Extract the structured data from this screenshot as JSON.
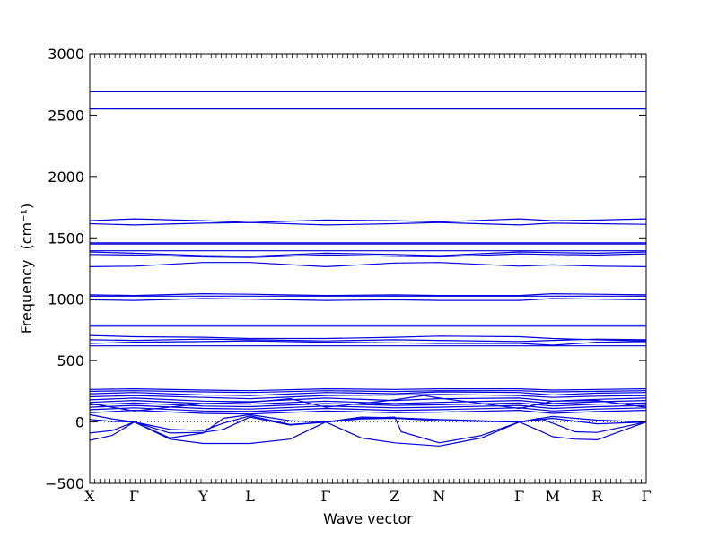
{
  "chart_data": {
    "type": "line",
    "xlabel": "Wave vector",
    "ylabel": "Frequency",
    "ylabel_unit": "(cm⁻¹)",
    "ylim": [
      -500,
      3000
    ],
    "yticks": [
      -500,
      0,
      500,
      1000,
      1500,
      2000,
      2500,
      3000
    ],
    "ytick_labels": [
      "−500",
      "0",
      "500",
      "1000",
      "1500",
      "2000",
      "2500",
      "3000"
    ],
    "xlim": [
      0,
      12.5
    ],
    "kpoints": [
      {
        "label": "X",
        "x": 0
      },
      {
        "label": "Γ",
        "x": 1
      },
      {
        "label": "Y",
        "x": 2.55
      },
      {
        "label": "L",
        "x": 3.6
      },
      {
        "label": "Γ",
        "x": 5.3
      },
      {
        "label": "Z",
        "x": 6.85
      },
      {
        "label": "N",
        "x": 7.85
      },
      {
        "label": "Γ",
        "x": 9.65
      },
      {
        "label": "M",
        "x": 10.4
      },
      {
        "label": "R",
        "x": 11.4
      },
      {
        "label": "Γ",
        "x": 12.5
      }
    ],
    "line_color": "#0000dd",
    "zero_line": true,
    "grid": false,
    "series": [
      {
        "x": [
          0,
          12.5
        ],
        "y": [
          2695,
          2695
        ]
      },
      {
        "x": [
          0,
          12.5
        ],
        "y": [
          2690,
          2690
        ]
      },
      {
        "x": [
          0,
          12.5
        ],
        "y": [
          2555,
          2555
        ]
      },
      {
        "x": [
          0,
          12.5
        ],
        "y": [
          2550,
          2550
        ]
      },
      {
        "x": [
          0,
          1,
          2.55,
          3.6,
          5.3,
          6.85,
          7.85,
          9.65,
          10.4,
          11.4,
          12.5
        ],
        "y": [
          1640,
          1655,
          1640,
          1625,
          1645,
          1640,
          1630,
          1655,
          1640,
          1645,
          1655
        ]
      },
      {
        "x": [
          0,
          1,
          2.55,
          3.6,
          5.3,
          6.85,
          7.85,
          9.65,
          10.4,
          11.4,
          12.5
        ],
        "y": [
          1615,
          1605,
          1620,
          1625,
          1605,
          1615,
          1625,
          1605,
          1620,
          1615,
          1610
        ]
      },
      {
        "x": [
          0,
          12.5
        ],
        "y": [
          1460,
          1460
        ]
      },
      {
        "x": [
          0,
          12.5
        ],
        "y": [
          1450,
          1450
        ]
      },
      {
        "x": [
          0,
          12.5
        ],
        "y": [
          1395,
          1395
        ]
      },
      {
        "x": [
          0,
          1,
          2.55,
          3.6,
          5.3,
          6.85,
          7.85,
          9.65,
          10.4,
          11.4,
          12.5
        ],
        "y": [
          1385,
          1375,
          1355,
          1350,
          1375,
          1365,
          1355,
          1385,
          1380,
          1375,
          1385
        ]
      },
      {
        "x": [
          0,
          1,
          2.55,
          3.6,
          5.3,
          6.85,
          7.85,
          9.65,
          10.4,
          11.4,
          12.5
        ],
        "y": [
          1365,
          1360,
          1345,
          1340,
          1360,
          1350,
          1345,
          1370,
          1365,
          1360,
          1370
        ]
      },
      {
        "x": [
          0,
          1,
          2.55,
          3.6,
          5.3,
          6.85,
          7.85,
          9.65,
          10.4,
          11.4,
          12.5
        ],
        "y": [
          1265,
          1270,
          1300,
          1300,
          1265,
          1295,
          1300,
          1270,
          1280,
          1270,
          1265
        ]
      },
      {
        "x": [
          0,
          1,
          2.55,
          3.6,
          5.3,
          6.85,
          7.85,
          9.65,
          10.4,
          11.4,
          12.5
        ],
        "y": [
          1035,
          1030,
          1045,
          1040,
          1030,
          1035,
          1030,
          1030,
          1045,
          1040,
          1035
        ]
      },
      {
        "x": [
          0,
          12.5
        ],
        "y": [
          1025,
          1025
        ]
      },
      {
        "x": [
          0,
          1,
          2.55,
          3.6,
          5.3,
          6.85,
          7.85,
          9.65,
          10.4,
          11.4,
          12.5
        ],
        "y": [
          995,
          990,
          1005,
          1000,
          990,
          995,
          990,
          990,
          1005,
          1000,
          995
        ]
      },
      {
        "x": [
          0,
          12.5
        ],
        "y": [
          790,
          790
        ]
      },
      {
        "x": [
          0,
          12.5
        ],
        "y": [
          780,
          780
        ]
      },
      {
        "x": [
          0,
          1,
          2.55,
          3.6,
          5.3,
          6.85,
          7.85,
          9.65,
          10.4,
          11.4,
          12.5
        ],
        "y": [
          705,
          695,
          690,
          680,
          680,
          690,
          700,
          695,
          680,
          670,
          660
        ]
      },
      {
        "x": [
          0,
          1,
          2.55,
          3.6,
          5.3,
          6.85,
          7.85,
          9.65,
          10.4,
          11.4,
          12.5
        ],
        "y": [
          670,
          665,
          675,
          670,
          660,
          670,
          665,
          655,
          665,
          675,
          670
        ]
      },
      {
        "x": [
          0,
          1,
          2.55,
          3.6,
          5.3,
          6.85,
          7.85,
          9.65,
          10.4,
          11.4,
          12.5
        ],
        "y": [
          640,
          650,
          655,
          660,
          650,
          645,
          640,
          640,
          625,
          650,
          655
        ]
      },
      {
        "x": [
          0,
          12.5
        ],
        "y": [
          620,
          620
        ]
      },
      {
        "x": [
          0,
          1,
          2.55,
          3.6,
          5.3,
          6.85,
          7.85,
          9.65,
          10.4,
          11.4,
          12.5
        ],
        "y": [
          265,
          270,
          260,
          255,
          270,
          265,
          270,
          270,
          260,
          265,
          270
        ]
      },
      {
        "x": [
          0,
          1,
          2.55,
          3.6,
          5.3,
          6.85,
          7.85,
          9.65,
          10.4,
          11.4,
          12.5
        ],
        "y": [
          250,
          255,
          245,
          240,
          255,
          248,
          255,
          255,
          245,
          250,
          255
        ]
      },
      {
        "x": [
          0,
          1,
          2.55,
          3.6,
          5.3,
          6.85,
          7.85,
          9.65,
          10.4,
          11.4,
          12.5
        ],
        "y": [
          230,
          240,
          220,
          215,
          240,
          230,
          245,
          240,
          220,
          235,
          240
        ]
      },
      {
        "x": [
          0,
          1,
          2.55,
          3.6,
          5.3,
          6.85,
          7.85,
          9.65,
          10.4,
          11.4,
          12.5
        ],
        "y": [
          205,
          215,
          200,
          190,
          215,
          220,
          225,
          215,
          200,
          210,
          215
        ]
      },
      {
        "x": [
          0,
          1,
          2.55,
          3.6,
          5.3,
          6.85,
          7.85,
          9.65,
          10.4,
          11.4,
          12.5
        ],
        "y": [
          180,
          195,
          170,
          165,
          195,
          175,
          190,
          195,
          170,
          185,
          195
        ]
      },
      {
        "x": [
          0,
          1,
          2.55,
          3.6,
          5.3,
          6.85,
          7.85,
          9.65,
          10.4,
          11.4,
          12.5
        ],
        "y": [
          160,
          175,
          150,
          145,
          170,
          150,
          160,
          175,
          150,
          165,
          175
        ]
      },
      {
        "x": [
          0,
          1,
          2.55,
          3.6,
          5.3,
          6.85,
          7.85,
          9.65,
          10.4,
          11.4,
          12.5
        ],
        "y": [
          140,
          155,
          130,
          125,
          150,
          135,
          140,
          155,
          130,
          145,
          155
        ]
      },
      {
        "x": [
          0,
          1,
          2.55,
          3.6,
          5.3,
          6.85,
          7.85,
          9.65,
          10.4,
          11.4,
          12.5
        ],
        "y": [
          120,
          135,
          110,
          105,
          130,
          115,
          120,
          135,
          110,
          125,
          135
        ]
      },
      {
        "x": [
          0,
          1,
          2.55,
          3.6,
          5.3,
          6.85,
          7.85,
          9.65,
          10.4,
          11.4,
          12.5
        ],
        "y": [
          100,
          115,
          90,
          85,
          110,
          95,
          100,
          115,
          90,
          105,
          115
        ]
      },
      {
        "x": [
          0,
          1,
          2.55,
          3.6,
          5.3,
          6.85,
          7.85,
          9.65,
          10.4,
          11.4,
          12.5
        ],
        "y": [
          75,
          95,
          70,
          65,
          90,
          75,
          80,
          95,
          70,
          85,
          95
        ]
      },
      {
        "x": [
          0,
          0.5,
          1,
          2.55,
          3.6,
          4.5,
          5.3,
          6.85,
          7.5,
          7.85,
          9.65,
          10.4,
          11.4,
          12.5
        ],
        "y": [
          150,
          120,
          90,
          150,
          160,
          190,
          120,
          180,
          215,
          195,
          110,
          170,
          175,
          120
        ]
      },
      {
        "x": [
          0,
          0.5,
          1,
          1.8,
          2.55,
          3.0,
          3.6,
          4.5,
          5.3,
          6.1,
          6.85,
          7.85,
          8.8,
          9.65,
          10.4,
          11.4,
          12.5
        ],
        "y": [
          60,
          25,
          0,
          -130,
          -90,
          30,
          60,
          10,
          0,
          40,
          35,
          20,
          10,
          0,
          45,
          15,
          0
        ]
      },
      {
        "x": [
          0,
          0.5,
          1,
          1.8,
          2.55,
          3.0,
          3.6,
          4.5,
          5.3,
          6.1,
          6.85,
          7.85,
          8.8,
          9.65,
          10.4,
          11.4,
          12.5
        ],
        "y": [
          20,
          5,
          0,
          -60,
          -70,
          -10,
          50,
          -20,
          0,
          25,
          30,
          10,
          5,
          0,
          30,
          -15,
          0
        ]
      },
      {
        "x": [
          0,
          0.5,
          1,
          1.8,
          2.55,
          3.0,
          3.6,
          4.5,
          5.3,
          6.1,
          6.85,
          7.0,
          7.85,
          8.8,
          9.65,
          10.1,
          10.4,
          10.9,
          11.4,
          12.5
        ],
        "y": [
          -90,
          -70,
          0,
          -90,
          -85,
          -60,
          40,
          -25,
          0,
          30,
          40,
          -80,
          -170,
          -110,
          0,
          30,
          -10,
          -80,
          -85,
          0
        ]
      },
      {
        "x": [
          0,
          0.5,
          1,
          1.8,
          2.55,
          3.6,
          4.5,
          5.3,
          6.1,
          6.85,
          7.85,
          8.8,
          9.65,
          10.1,
          10.4,
          10.9,
          11.4,
          12.5
        ],
        "y": [
          -150,
          -110,
          0,
          -140,
          -175,
          -175,
          -140,
          0,
          -130,
          -170,
          -195,
          -130,
          0,
          -70,
          -120,
          -140,
          -145,
          0
        ]
      }
    ]
  }
}
